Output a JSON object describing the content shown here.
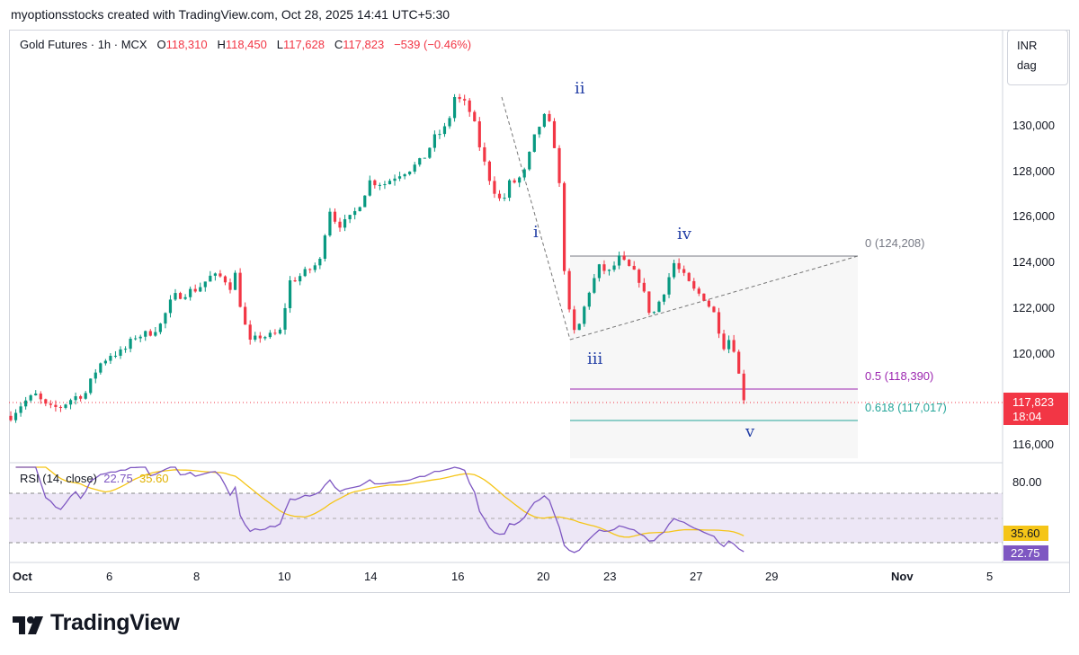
{
  "header": {
    "caption": "myoptionsstocks created with TradingView.com, Oct 28, 2025 14:41 UTC+5:30"
  },
  "legend": {
    "symbol": "Gold Futures · 1h · MCX",
    "o_label": "O",
    "o_value": "118,310",
    "h_label": "H",
    "h_value": "118,450",
    "l_label": "L",
    "l_value": "117,628",
    "c_label": "C",
    "c_value": "117,823",
    "change": "−539 (−0.46%)"
  },
  "currency_badge": {
    "currency": "INR",
    "unit": "dag"
  },
  "rsi_legend": {
    "label": "RSI (14, close)",
    "rsi_value": "22.75",
    "ma_value": "35.60"
  },
  "price_axis": {
    "ticks": [
      "130,000",
      "128,000",
      "126,000",
      "124,000",
      "122,000",
      "120,000",
      "116,000"
    ]
  },
  "rsi_axis": {
    "top_label": "80.00"
  },
  "last_price": {
    "price": "117,823",
    "countdown": "18:04"
  },
  "rsi_tags": {
    "ma": "35.60",
    "rsi": "22.75"
  },
  "time_axis": {
    "labels": [
      "Oct",
      "6",
      "8",
      "10",
      "14",
      "16",
      "20",
      "23",
      "27",
      "29",
      "Nov",
      "5"
    ]
  },
  "fib": {
    "level_0": "0 (124,208)",
    "level_05": "0.5 (118,390)",
    "level_0618": "0.618 (117,017)"
  },
  "waves": {
    "w1": "i",
    "w2": "ii",
    "w3": "iii",
    "w4": "iv",
    "w5": "v"
  },
  "brand": {
    "name": "TradingView"
  },
  "colors": {
    "up": "#089981",
    "down": "#f23645",
    "rsi": "#7e57c2",
    "rsi_ma": "#f5c518",
    "fib_05": "#9c27b0",
    "fib_0618": "#26a69a",
    "wave": "#2440a6"
  },
  "chart_data": {
    "type": "candlestick",
    "title": "Gold Futures · 1h · MCX",
    "currency": "INR",
    "ylim": [
      115500,
      131500
    ],
    "y_ticks": [
      116000,
      120000,
      122000,
      124000,
      126000,
      128000,
      130000
    ],
    "x_tick_labels": [
      "Oct",
      "6",
      "8",
      "10",
      "14",
      "16",
      "20",
      "23",
      "27",
      "29",
      "Nov",
      "5"
    ],
    "ohlc_last": {
      "open": 118310,
      "high": 118450,
      "low": 117628,
      "close": 117823,
      "change": -539,
      "change_pct": -0.46
    },
    "trajectory": [
      [
        0,
        117300
      ],
      [
        5,
        117900
      ],
      [
        10,
        118200
      ],
      [
        15,
        117600
      ],
      [
        20,
        117700
      ],
      [
        25,
        118100
      ],
      [
        30,
        118300
      ],
      [
        35,
        119500
      ],
      [
        40,
        120000
      ],
      [
        45,
        120100
      ],
      [
        50,
        120800
      ],
      [
        55,
        120900
      ],
      [
        60,
        121300
      ],
      [
        65,
        122500
      ],
      [
        70,
        122700
      ],
      [
        75,
        122900
      ],
      [
        80,
        123400
      ],
      [
        85,
        123400
      ],
      [
        88,
        123000
      ],
      [
        90,
        123500
      ],
      [
        93,
        121600
      ],
      [
        96,
        120500
      ],
      [
        100,
        120800
      ],
      [
        105,
        120800
      ],
      [
        108,
        121000
      ],
      [
        112,
        123200
      ],
      [
        117,
        123500
      ],
      [
        121,
        123800
      ],
      [
        125,
        124200
      ],
      [
        127,
        126600
      ],
      [
        131,
        125700
      ],
      [
        135,
        125800
      ],
      [
        139,
        126400
      ],
      [
        144,
        127600
      ],
      [
        150,
        127500
      ],
      [
        155,
        127900
      ],
      [
        161,
        128200
      ],
      [
        165,
        128500
      ],
      [
        170,
        129500
      ],
      [
        175,
        130000
      ],
      [
        178,
        131300
      ],
      [
        182,
        131000
      ],
      [
        185,
        130500
      ],
      [
        189,
        128700
      ],
      [
        193,
        127400
      ],
      [
        197,
        126600
      ],
      [
        200,
        127500
      ],
      [
        203,
        127600
      ],
      [
        206,
        128000
      ],
      [
        210,
        129500
      ],
      [
        213,
        130300
      ],
      [
        215,
        130500
      ],
      [
        218,
        129200
      ],
      [
        220,
        127400
      ],
      [
        222,
        123800
      ],
      [
        225,
        120800
      ],
      [
        228,
        121300
      ],
      [
        232,
        122800
      ],
      [
        236,
        123800
      ],
      [
        240,
        123600
      ],
      [
        244,
        124200
      ],
      [
        248,
        123800
      ],
      [
        252,
        123300
      ],
      [
        257,
        121600
      ],
      [
        262,
        122800
      ],
      [
        266,
        124000
      ],
      [
        270,
        123400
      ],
      [
        274,
        122800
      ],
      [
        278,
        122500
      ],
      [
        282,
        121800
      ],
      [
        286,
        120400
      ],
      [
        289,
        120800
      ],
      [
        291,
        119800
      ],
      [
        293,
        118400
      ],
      [
        295,
        117823
      ]
    ],
    "rsi": {
      "period": 14,
      "value": 22.75,
      "ma": 35.6,
      "bands": [
        30,
        50,
        70
      ],
      "top_label": 80
    },
    "annotations": {
      "fib_retracement": [
        {
          "ratio": 0,
          "price": 124208
        },
        {
          "ratio": 0.5,
          "price": 118390
        },
        {
          "ratio": 0.618,
          "price": 117017
        }
      ],
      "elliott_waves": [
        {
          "label": "i",
          "price": 126000
        },
        {
          "label": "ii",
          "price": 130800
        },
        {
          "label": "iii",
          "price": 120700
        },
        {
          "label": "iv",
          "price": 124300
        },
        {
          "label": "v",
          "price": 116900
        }
      ]
    }
  }
}
